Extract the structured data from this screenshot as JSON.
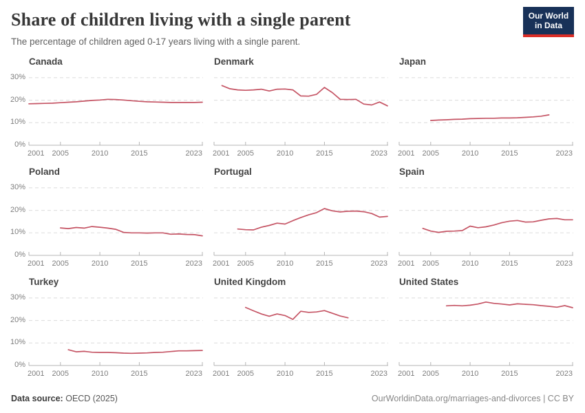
{
  "header": {
    "title": "Share of children living with a single parent",
    "subtitle": "The percentage of children aged 0-17 years living with a single parent.",
    "logo_line1": "Our World",
    "logo_line2": "in Data"
  },
  "style": {
    "line_color": "#c55464",
    "grid_color": "#dbdbdb",
    "axis_color": "#b5b5b5",
    "tick_text_color": "#7d7d7d",
    "logo_bg": "#183158",
    "logo_accent": "#dc2e27"
  },
  "axis": {
    "x_domain": [
      2001,
      2023
    ],
    "x_ticks": [
      2001,
      2005,
      2010,
      2015,
      2023
    ],
    "y_ticks": [
      0,
      10,
      20,
      30
    ],
    "y_tick_labels": [
      "0%",
      "10%",
      "20%",
      "30%"
    ],
    "y_max": 33,
    "grid": true
  },
  "chart_data": [
    {
      "type": "line",
      "title": "Canada",
      "show_y_labels": true,
      "xlabel": "",
      "ylabel": "",
      "ylim": [
        0,
        33
      ],
      "x": [
        2001,
        2002,
        2003,
        2004,
        2005,
        2006,
        2007,
        2008,
        2009,
        2010,
        2011,
        2012,
        2013,
        2014,
        2015,
        2016,
        2017,
        2018,
        2019,
        2020,
        2021,
        2022,
        2023
      ],
      "values": [
        18.4,
        18.5,
        18.6,
        18.7,
        18.9,
        19.1,
        19.3,
        19.6,
        19.9,
        20.1,
        20.4,
        20.3,
        20.1,
        19.8,
        19.5,
        19.3,
        19.2,
        19.1,
        19.0,
        19.0,
        19.0,
        19.0,
        19.1
      ]
    },
    {
      "type": "line",
      "title": "Denmark",
      "show_y_labels": false,
      "xlabel": "",
      "ylabel": "",
      "ylim": [
        0,
        33
      ],
      "x": [
        2002,
        2003,
        2004,
        2005,
        2006,
        2007,
        2008,
        2009,
        2010,
        2011,
        2012,
        2013,
        2014,
        2015,
        2016,
        2017,
        2018,
        2019,
        2020,
        2021,
        2022,
        2023
      ],
      "values": [
        26.5,
        25.1,
        24.6,
        24.4,
        24.6,
        24.9,
        24.1,
        24.9,
        25.0,
        24.6,
        21.9,
        21.8,
        22.6,
        25.7,
        23.4,
        20.4,
        20.3,
        20.4,
        18.3,
        17.9,
        19.2,
        17.5
      ]
    },
    {
      "type": "line",
      "title": "Japan",
      "show_y_labels": false,
      "xlabel": "",
      "ylabel": "",
      "ylim": [
        0,
        33
      ],
      "x": [
        2005,
        2006,
        2007,
        2008,
        2009,
        2010,
        2011,
        2012,
        2013,
        2014,
        2015,
        2016,
        2017,
        2018,
        2019,
        2020
      ],
      "values": [
        11.0,
        11.2,
        11.3,
        11.5,
        11.6,
        11.8,
        11.9,
        12.0,
        12.0,
        12.1,
        12.1,
        12.2,
        12.4,
        12.6,
        12.9,
        13.5
      ]
    },
    {
      "type": "line",
      "title": "Poland",
      "show_y_labels": true,
      "xlabel": "",
      "ylabel": "",
      "ylim": [
        0,
        33
      ],
      "x": [
        2005,
        2006,
        2007,
        2008,
        2009,
        2010,
        2011,
        2012,
        2013,
        2014,
        2015,
        2016,
        2017,
        2018,
        2019,
        2020,
        2021,
        2022,
        2023
      ],
      "values": [
        12.2,
        11.9,
        12.4,
        12.1,
        12.8,
        12.5,
        12.1,
        11.6,
        10.2,
        10.0,
        10.0,
        9.9,
        10.0,
        10.0,
        9.4,
        9.5,
        9.3,
        9.2,
        8.7
      ]
    },
    {
      "type": "line",
      "title": "Portugal",
      "show_y_labels": false,
      "xlabel": "",
      "ylabel": "",
      "ylim": [
        0,
        33
      ],
      "x": [
        2004,
        2005,
        2006,
        2007,
        2008,
        2009,
        2010,
        2011,
        2012,
        2013,
        2014,
        2015,
        2016,
        2017,
        2018,
        2019,
        2020,
        2021,
        2022,
        2023
      ],
      "values": [
        11.7,
        11.4,
        11.3,
        12.5,
        13.3,
        14.3,
        13.9,
        15.4,
        16.8,
        18.0,
        19.0,
        20.8,
        19.8,
        19.3,
        19.6,
        19.7,
        19.4,
        18.6,
        17.0,
        17.3
      ]
    },
    {
      "type": "line",
      "title": "Spain",
      "show_y_labels": false,
      "xlabel": "",
      "ylabel": "",
      "ylim": [
        0,
        33
      ],
      "x": [
        2004,
        2005,
        2006,
        2007,
        2008,
        2009,
        2010,
        2011,
        2012,
        2013,
        2014,
        2015,
        2016,
        2017,
        2018,
        2019,
        2020,
        2021,
        2022,
        2023
      ],
      "values": [
        12.0,
        10.8,
        10.2,
        10.7,
        10.8,
        11.0,
        13.0,
        12.3,
        12.7,
        13.5,
        14.5,
        15.2,
        15.5,
        14.8,
        14.9,
        15.6,
        16.2,
        16.4,
        15.8,
        15.8
      ]
    },
    {
      "type": "line",
      "title": "Turkey",
      "show_y_labels": true,
      "xlabel": "",
      "ylabel": "",
      "ylim": [
        0,
        33
      ],
      "x": [
        2006,
        2007,
        2008,
        2009,
        2010,
        2011,
        2012,
        2013,
        2014,
        2015,
        2016,
        2017,
        2018,
        2019,
        2020,
        2021,
        2022,
        2023
      ],
      "values": [
        7.0,
        6.1,
        6.3,
        5.9,
        5.8,
        5.8,
        5.7,
        5.5,
        5.4,
        5.5,
        5.6,
        5.8,
        5.9,
        6.2,
        6.5,
        6.5,
        6.6,
        6.7
      ]
    },
    {
      "type": "line",
      "title": "United Kingdom",
      "show_y_labels": false,
      "xlabel": "",
      "ylabel": "",
      "ylim": [
        0,
        33
      ],
      "x": [
        2005,
        2006,
        2007,
        2008,
        2009,
        2010,
        2011,
        2012,
        2013,
        2014,
        2015,
        2016,
        2017,
        2018
      ],
      "values": [
        25.8,
        24.3,
        22.9,
        21.9,
        22.9,
        22.2,
        20.5,
        24.1,
        23.6,
        23.8,
        24.4,
        23.2,
        22.0,
        21.2
      ]
    },
    {
      "type": "line",
      "title": "United States",
      "show_y_labels": false,
      "xlabel": "",
      "ylabel": "",
      "ylim": [
        0,
        33
      ],
      "x": [
        2007,
        2008,
        2009,
        2010,
        2011,
        2012,
        2013,
        2014,
        2015,
        2016,
        2017,
        2018,
        2019,
        2020,
        2021,
        2022,
        2023
      ],
      "values": [
        26.5,
        26.7,
        26.5,
        26.8,
        27.3,
        28.2,
        27.6,
        27.3,
        26.9,
        27.4,
        27.2,
        27.0,
        26.6,
        26.3,
        25.9,
        26.6,
        25.7
      ]
    }
  ],
  "footer": {
    "source_label": "Data source:",
    "source_value": "OECD (2025)",
    "link": "OurWorldinData.org/marriages-and-divorces | CC BY"
  }
}
